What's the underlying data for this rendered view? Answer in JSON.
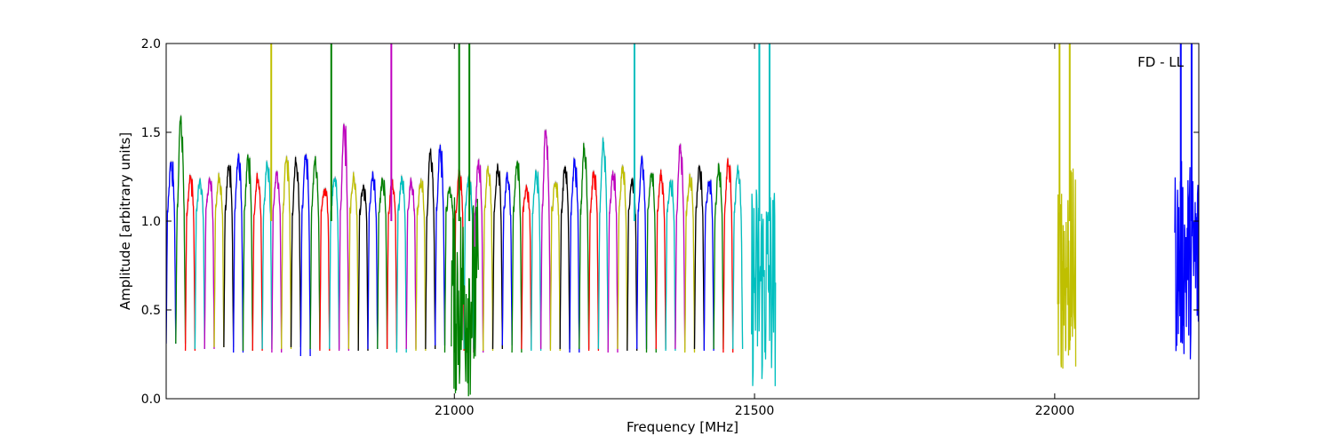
{
  "chart_data": {
    "type": "line",
    "title": "",
    "annotation": "FD - LL",
    "xlabel": "Frequency [MHz]",
    "ylabel": "Amplitude [arbitrary units]",
    "xlim": [
      20520,
      22240
    ],
    "ylim": [
      0.0,
      2.0
    ],
    "xticks": [
      21000,
      21500,
      22000
    ],
    "xtick_labels": [
      "21000",
      "21500",
      "22000"
    ],
    "yticks": [
      0.0,
      0.5,
      1.0,
      1.5,
      2.0
    ],
    "ytick_labels": [
      "0.0",
      "0.5",
      "1.0",
      "1.5",
      "2.0"
    ],
    "grid": false,
    "series_colors": [
      "#0000ff",
      "#008000",
      "#ff0000",
      "#00bfbf",
      "#bf00bf",
      "#bfbf00",
      "#000000"
    ],
    "shadow_color": "#bfbfbf",
    "channel_width_mhz": 16,
    "channel_start_mhz": 20520,
    "channel_peaks": [
      1.37,
      1.58,
      1.28,
      1.22,
      1.26,
      1.25,
      1.35,
      1.36,
      1.4,
      1.25,
      1.36,
      1.27,
      1.42,
      1.35,
      1.43,
      1.35,
      1.2,
      1.25,
      1.61,
      1.25,
      1.2,
      1.25,
      1.25,
      1.22,
      1.27,
      1.22,
      1.25,
      1.4,
      1.47,
      1.18,
      1.32,
      1.25,
      1.37,
      1.3,
      1.34,
      1.25,
      1.38,
      1.18,
      1.3,
      1.52,
      1.25,
      1.3,
      1.38,
      1.42,
      1.3,
      1.45,
      1.3,
      1.3,
      1.25,
      1.35,
      1.3,
      1.26,
      1.24,
      1.43,
      1.27,
      1.3,
      1.25,
      1.3,
      1.38,
      1.3
    ],
    "channel_troughs": [
      0.31,
      0.31,
      0.27,
      0.28,
      0.28,
      0.29,
      0.29,
      0.26,
      0.27,
      0.27,
      0.28,
      0.26,
      0.28,
      0.29,
      0.24,
      0.28,
      0.27,
      0.28,
      0.27,
      0.28,
      0.27,
      0.28,
      0.28,
      0.28,
      0.26,
      0.28,
      0.27,
      0.28,
      0.3,
      0.26,
      0.27,
      0.28,
      0.26,
      0.27,
      0.28,
      0.3,
      0.26,
      0.28,
      0.27,
      0.28,
      0.27,
      0.28,
      0.26,
      0.28,
      0.27,
      0.28,
      0.26,
      0.28,
      0.27,
      0.28,
      0.26,
      0.28,
      0.27,
      0.28,
      0.26,
      0.28,
      0.27,
      0.28,
      0.26,
      0.28
    ],
    "spikes": [
      {
        "x": 20695,
        "color": "#bfbf00"
      },
      {
        "x": 20795,
        "color": "#008000"
      },
      {
        "x": 20895,
        "color": "#bf00bf"
      },
      {
        "x": 21008,
        "color": "#008000"
      },
      {
        "x": 21025,
        "color": "#008000"
      },
      {
        "x": 21300,
        "color": "#00bfbf"
      },
      {
        "x": 21508,
        "color": "#00bfbf"
      },
      {
        "x": 21525,
        "color": "#00bfbf"
      },
      {
        "x": 22008,
        "color": "#bfbf00"
      },
      {
        "x": 22025,
        "color": "#bfbf00"
      },
      {
        "x": 22210,
        "color": "#0000ff"
      },
      {
        "x": 22228,
        "color": "#0000ff"
      }
    ],
    "noisy_regions": [
      {
        "x_start": 20995,
        "x_end": 21040,
        "y_min": 0.0,
        "y_max": 1.15,
        "color": "#008000"
      },
      {
        "x_start": 21495,
        "x_end": 21535,
        "y_min": 0.05,
        "y_max": 1.25,
        "color": "#00bfbf"
      },
      {
        "x_start": 22005,
        "x_end": 22035,
        "y_min": 0.15,
        "y_max": 1.3,
        "color": "#bfbf00"
      },
      {
        "x_start": 22200,
        "x_end": 22240,
        "y_min": 0.22,
        "y_max": 1.35,
        "color": "#0000ff"
      }
    ]
  }
}
